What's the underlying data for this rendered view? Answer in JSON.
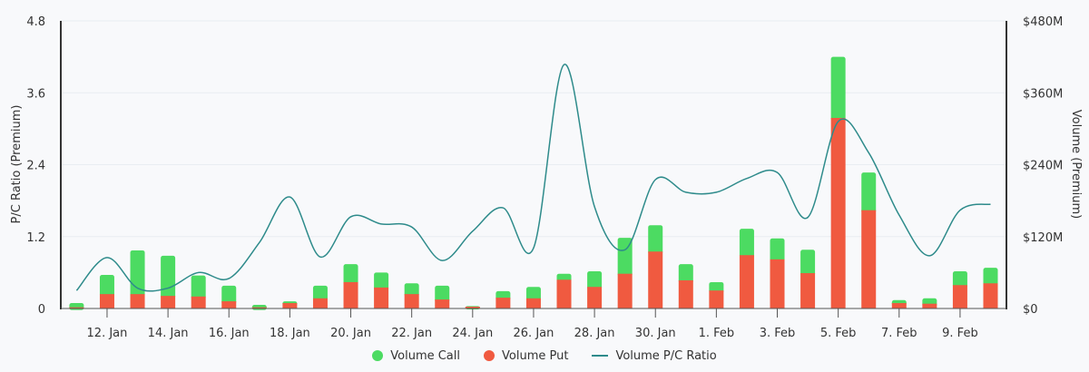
{
  "chart_data": {
    "type": "bar",
    "subtype": "stacked-bar-with-line-dual-axis",
    "title": "",
    "categories": [
      "11. Jan",
      "12. Jan",
      "13. Jan",
      "14. Jan",
      "15. Jan",
      "16. Jan",
      "17. Jan",
      "18. Jan",
      "19. Jan",
      "20. Jan",
      "21. Jan",
      "22. Jan",
      "23. Jan",
      "24. Jan",
      "25. Jan",
      "26. Jan",
      "27. Jan",
      "28. Jan",
      "29. Jan",
      "30. Jan",
      "31. Jan",
      "1. Feb",
      "2. Feb",
      "3. Feb",
      "4. Feb",
      "5. Feb",
      "6. Feb",
      "7. Feb",
      "8. Feb",
      "9. Feb",
      "10. Feb"
    ],
    "x_tick_labels": [
      "12. Jan",
      "14. Jan",
      "16. Jan",
      "18. Jan",
      "20. Jan",
      "22. Jan",
      "24. Jan",
      "26. Jan",
      "28. Jan",
      "30. Jan",
      "1. Feb",
      "3. Feb",
      "5. Feb",
      "7. Feb",
      "9. Feb"
    ],
    "series": [
      {
        "name": "Volume Put",
        "type": "bar",
        "axis": "right",
        "color": "#f05a40",
        "unit": "$M",
        "values": [
          2,
          24,
          24,
          21,
          20,
          12,
          2,
          9,
          17,
          44,
          35,
          24,
          15,
          3,
          18,
          17,
          48,
          36,
          58,
          95,
          47,
          30,
          89,
          82,
          59,
          318,
          164,
          9,
          8,
          39,
          42
        ]
      },
      {
        "name": "Volume Call",
        "type": "bar",
        "axis": "right",
        "color": "#4cdb62",
        "unit": "$M",
        "values": [
          7,
          32,
          73,
          67,
          35,
          26,
          4,
          3,
          21,
          30,
          25,
          18,
          23,
          1,
          11,
          19,
          10,
          26,
          60,
          44,
          27,
          14,
          44,
          35,
          39,
          102,
          63,
          5,
          9,
          23,
          26
        ]
      },
      {
        "name": "Volume P/C Ratio",
        "type": "line",
        "axis": "left",
        "color": "#2e8b8b",
        "values": [
          0.3,
          0.85,
          0.34,
          0.34,
          0.6,
          0.5,
          1.1,
          1.86,
          0.86,
          1.53,
          1.41,
          1.36,
          0.8,
          1.29,
          1.68,
          1.01,
          4.07,
          1.7,
          0.98,
          2.15,
          1.94,
          1.94,
          2.17,
          2.27,
          1.52,
          3.12,
          2.6,
          1.56,
          0.88,
          1.64,
          1.74
        ]
      }
    ],
    "ylabel": "P/C Ratio (Premium)",
    "ylim": [
      0,
      4.8
    ],
    "y_ticks": [
      "0",
      "1.2",
      "2.4",
      "3.6",
      "4.8"
    ],
    "y2label": "Volume (Premium)",
    "y2lim": [
      0,
      480
    ],
    "y2_ticks": [
      "$0",
      "$120M",
      "$240M",
      "$360M",
      "$480M"
    ],
    "grid": true,
    "legend_position": "bottom"
  },
  "legend": {
    "items": [
      {
        "label": "Volume Call",
        "color": "#4cdb62",
        "marker": "circle"
      },
      {
        "label": "Volume Put",
        "color": "#f05a40",
        "marker": "circle"
      },
      {
        "label": "Volume P/C Ratio",
        "color": "#2e8b8b",
        "marker": "line"
      }
    ]
  }
}
